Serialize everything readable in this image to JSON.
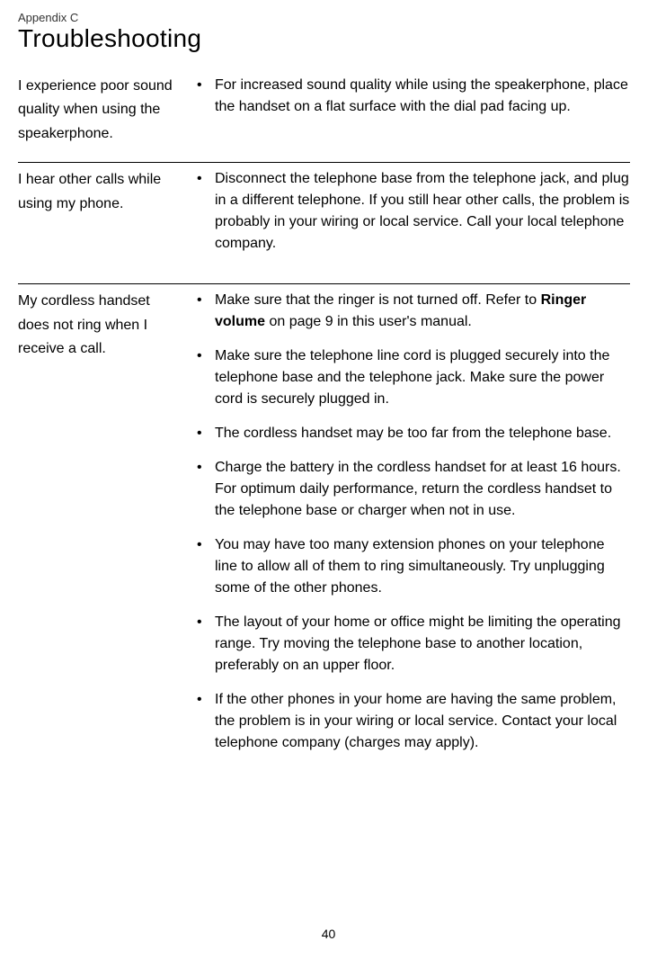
{
  "appendix_label": "Appendix C",
  "page_title": "Troubleshooting",
  "page_number": "40",
  "sections": [
    {
      "problem": "I experience poor sound quality when using the speakerphone.",
      "solutions": [
        {
          "text": "For increased sound quality while using the speakerphone, place the handset on a flat surface with the dial pad facing up."
        }
      ]
    },
    {
      "problem": "I hear other calls while using my phone.",
      "solutions": [
        {
          "text": "Disconnect the telephone base from the telephone jack, and plug in a different telephone. If you still hear other calls, the problem is probably in your wiring or local service. Call your local telephone company."
        }
      ]
    },
    {
      "problem": "My cordless handset does not ring when I receive a call.",
      "solutions": [
        {
          "pre": "Make sure that the ringer is not turned off. Refer to ",
          "bold": "Ringer volume",
          "post": " on page 9 in this user's manual."
        },
        {
          "text": "Make sure the telephone line cord is plugged securely into the telephone base and the telephone jack. Make sure the power cord is securely plugged in."
        },
        {
          "text": "The cordless handset may be too far from the telephone base."
        },
        {
          "text": "Charge the battery in the cordless handset for at least 16 hours. For optimum daily performance, return the cordless handset to the telephone base or charger when not in use."
        },
        {
          "text": "You may have too many extension phones on your telephone line to allow all of them to ring simultaneously. Try unplugging some of the other phones."
        },
        {
          "text": "The layout of your home or office might be limiting the operating range. Try moving the telephone base to another location, preferably on an upper floor."
        },
        {
          "text": "If the other phones in your home are having the same problem, the problem is in your wiring or local service. Contact your local telephone company (charges may apply)."
        }
      ]
    }
  ]
}
